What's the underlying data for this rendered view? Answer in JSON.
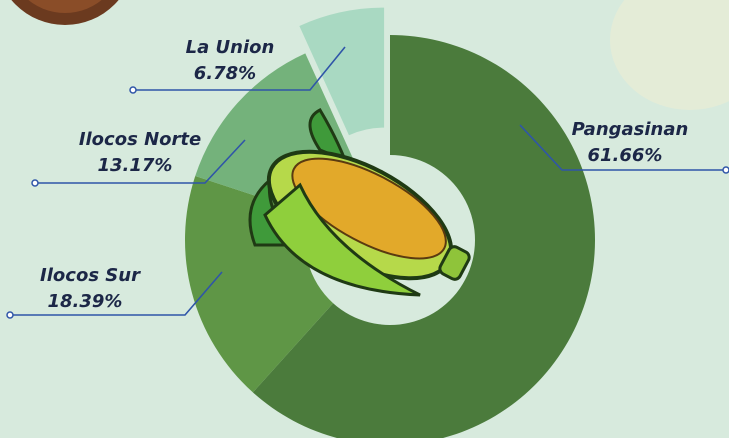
{
  "chart_data": {
    "type": "pie",
    "categories": [
      "Pangasinan",
      "Ilocos Sur",
      "Ilocos Norte",
      "La Union"
    ],
    "values": [
      61.66,
      18.39,
      13.17,
      6.78
    ],
    "value_labels": [
      "61.66%",
      "18.39%",
      "13.17%",
      "6.78%"
    ],
    "colors": [
      "#4b7b3c",
      "#5f9646",
      "#74b27b",
      "#a9d9c2"
    ],
    "exploded": "La Union"
  }
}
